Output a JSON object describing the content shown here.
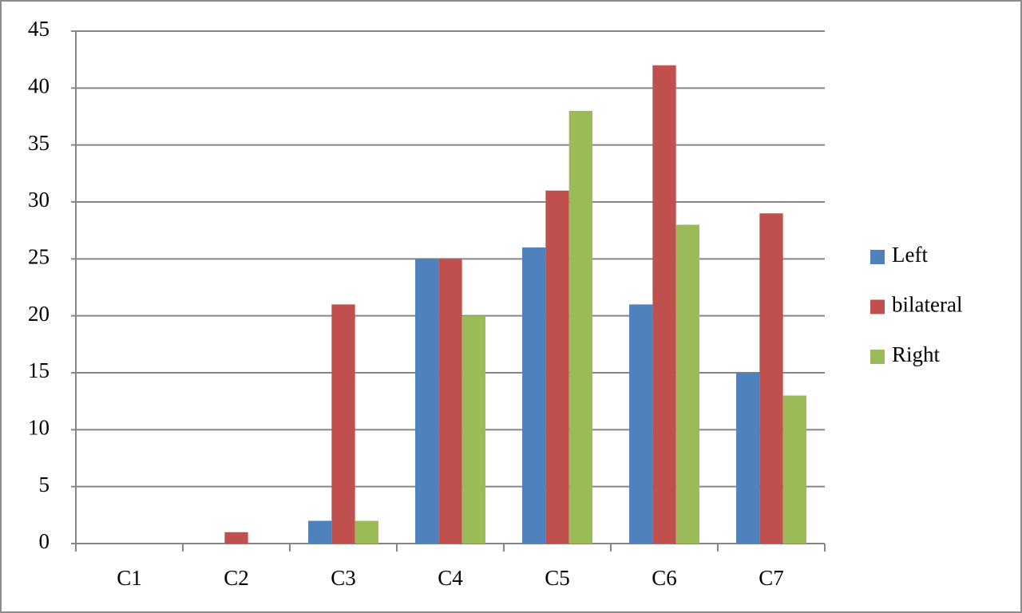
{
  "chart_data": {
    "type": "bar",
    "categories": [
      "C1",
      "C2",
      "C3",
      "C4",
      "C5",
      "C6",
      "C7"
    ],
    "series": [
      {
        "name": "Left",
        "color": "#4f81bd",
        "values": [
          0,
          0,
          2,
          25,
          26,
          21,
          15
        ]
      },
      {
        "name": "bilateral",
        "color": "#c0504d",
        "values": [
          0,
          1,
          21,
          25,
          31,
          42,
          29
        ]
      },
      {
        "name": "Right",
        "color": "#9bbb59",
        "values": [
          0,
          0,
          2,
          20,
          38,
          28,
          13
        ]
      }
    ],
    "ylim": [
      0,
      45
    ],
    "yticks": [
      0,
      5,
      10,
      15,
      20,
      25,
      30,
      35,
      40,
      45
    ],
    "grid": true,
    "legend": "right"
  }
}
